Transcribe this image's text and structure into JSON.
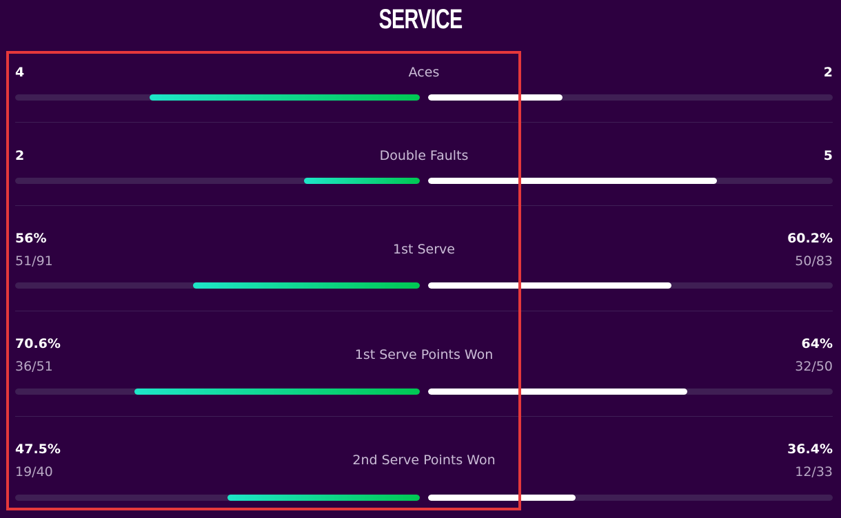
{
  "section": {
    "title": "SERVICE"
  },
  "stats": [
    {
      "label": "Aces",
      "left": {
        "value": "4",
        "sub": null,
        "ratio": 0.667
      },
      "right": {
        "value": "2",
        "sub": null,
        "ratio": 0.333
      }
    },
    {
      "label": "Double Faults",
      "left": {
        "value": "2",
        "sub": null,
        "ratio": 0.286
      },
      "right": {
        "value": "5",
        "sub": null,
        "ratio": 0.714
      }
    },
    {
      "label": "1st Serve",
      "left": {
        "value": "56%",
        "sub": "51/91",
        "ratio": 0.56
      },
      "right": {
        "value": "60.2%",
        "sub": "50/83",
        "ratio": 0.602
      }
    },
    {
      "label": "1st Serve Points Won",
      "left": {
        "value": "70.6%",
        "sub": "36/51",
        "ratio": 0.706
      },
      "right": {
        "value": "64%",
        "sub": "32/50",
        "ratio": 0.64
      }
    },
    {
      "label": "2nd Serve Points Won",
      "left": {
        "value": "47.5%",
        "sub": "19/40",
        "ratio": 0.475
      },
      "right": {
        "value": "36.4%",
        "sub": "12/33",
        "ratio": 0.364
      }
    }
  ],
  "colors": {
    "background": "#2d0040",
    "left_bar_gradient_start": "#1ee6c8",
    "left_bar_gradient_end": "#00c853",
    "right_bar": "#ffffff",
    "track": "#3f1f54",
    "highlight_box": "#e5383b"
  }
}
